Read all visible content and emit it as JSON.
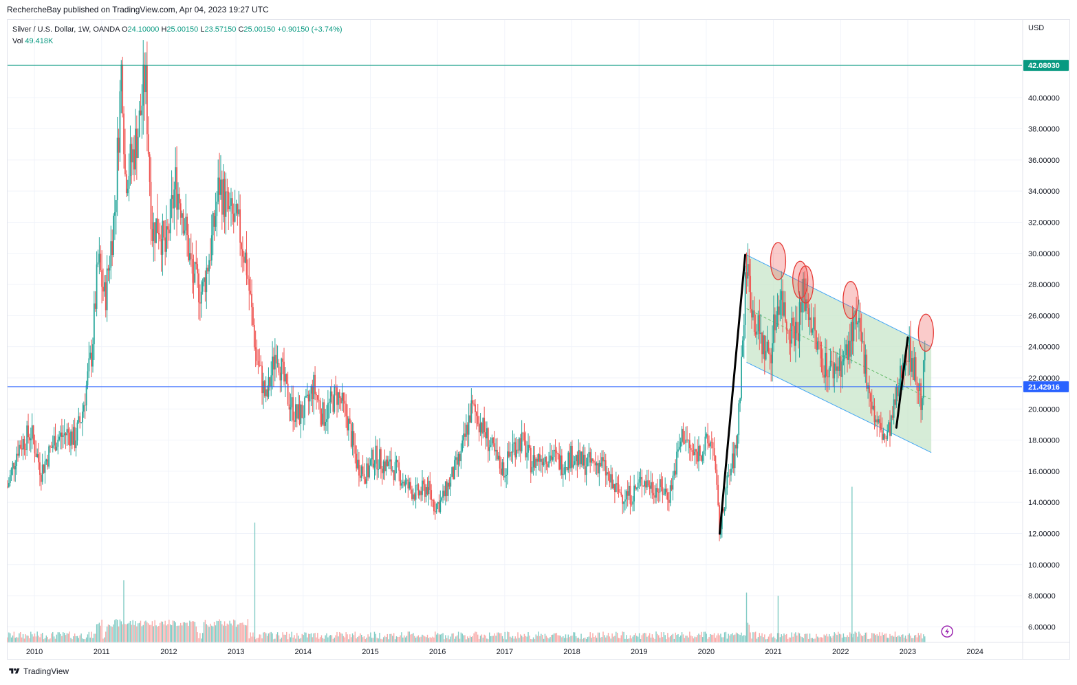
{
  "header": {
    "publisher_line": "RechercheBay published on TradingView.com, Apr 04, 2023 19:27 UTC"
  },
  "legend": {
    "symbol": "Silver / U.S. Dollar, 1W, OANDA",
    "o_label": "O",
    "o_value": "24.10000",
    "h_label": "H",
    "h_value": "25.00150",
    "l_label": "L",
    "l_value": "23.57150",
    "c_label": "C",
    "c_value": "25.00150",
    "change": "+0.90150 (+3.74%)",
    "vol_label": "Vol",
    "vol_value": "49.418K"
  },
  "footer": {
    "brand": "TradingView"
  },
  "chart_data": {
    "type": "candlestick",
    "currency_label": "USD",
    "y_ticks": [
      "6.00000",
      "8.00000",
      "10.00000",
      "12.00000",
      "14.00000",
      "16.00000",
      "18.00000",
      "20.00000",
      "22.00000",
      "24.00000",
      "26.00000",
      "28.00000",
      "30.00000",
      "32.00000",
      "34.00000",
      "36.00000",
      "38.00000",
      "40.00000"
    ],
    "x_ticks": [
      "2010",
      "2011",
      "2012",
      "2013",
      "2014",
      "2015",
      "2016",
      "2017",
      "2018",
      "2019",
      "2020",
      "2021",
      "2022",
      "2023",
      "2024"
    ],
    "ylim": [
      5,
      45
    ],
    "xlim": [
      2009.6,
      2024.7
    ],
    "horizontal_levels": [
      {
        "value": 42.0803,
        "label": "42.08030",
        "color": "#089981"
      },
      {
        "value": 21.42916,
        "label": "21.42916",
        "color": "#2962ff"
      }
    ],
    "price_path": [
      [
        2009.6,
        15.0
      ],
      [
        2009.75,
        17.5
      ],
      [
        2009.95,
        18.5
      ],
      [
        2010.1,
        16.0
      ],
      [
        2010.3,
        18.0
      ],
      [
        2010.5,
        18.5
      ],
      [
        2010.6,
        18.0
      ],
      [
        2010.7,
        19.5
      ],
      [
        2010.85,
        23.5
      ],
      [
        2010.95,
        29.5
      ],
      [
        2011.05,
        27.0
      ],
      [
        2011.2,
        33.0
      ],
      [
        2011.3,
        42.5
      ],
      [
        2011.35,
        35.0
      ],
      [
        2011.45,
        36.0
      ],
      [
        2011.55,
        38.0
      ],
      [
        2011.65,
        41.5
      ],
      [
        2011.75,
        31.5
      ],
      [
        2011.85,
        32.0
      ],
      [
        2011.95,
        30.0
      ],
      [
        2012.1,
        34.5
      ],
      [
        2012.2,
        33.0
      ],
      [
        2012.35,
        28.5
      ],
      [
        2012.5,
        27.5
      ],
      [
        2012.65,
        31.0
      ],
      [
        2012.75,
        34.5
      ],
      [
        2012.9,
        32.5
      ],
      [
        2013.05,
        31.5
      ],
      [
        2013.15,
        29.5
      ],
      [
        2013.3,
        23.5
      ],
      [
        2013.45,
        20.5
      ],
      [
        2013.6,
        24.0
      ],
      [
        2013.75,
        21.0
      ],
      [
        2013.9,
        19.5
      ],
      [
        2014.05,
        20.0
      ],
      [
        2014.15,
        21.5
      ],
      [
        2014.3,
        19.5
      ],
      [
        2014.5,
        21.0
      ],
      [
        2014.65,
        19.5
      ],
      [
        2014.8,
        16.5
      ],
      [
        2014.95,
        15.8
      ],
      [
        2015.05,
        17.0
      ],
      [
        2015.2,
        16.5
      ],
      [
        2015.4,
        16.0
      ],
      [
        2015.55,
        15.0
      ],
      [
        2015.7,
        14.5
      ],
      [
        2015.85,
        15.0
      ],
      [
        2015.95,
        13.8
      ],
      [
        2016.05,
        14.0
      ],
      [
        2016.2,
        15.5
      ],
      [
        2016.35,
        17.0
      ],
      [
        2016.5,
        20.0
      ],
      [
        2016.6,
        19.5
      ],
      [
        2016.75,
        18.0
      ],
      [
        2016.9,
        16.5
      ],
      [
        2017.0,
        16.0
      ],
      [
        2017.1,
        17.5
      ],
      [
        2017.25,
        18.0
      ],
      [
        2017.4,
        16.5
      ],
      [
        2017.55,
        17.0
      ],
      [
        2017.7,
        17.0
      ],
      [
        2017.85,
        16.5
      ],
      [
        2018.0,
        17.0
      ],
      [
        2018.15,
        16.5
      ],
      [
        2018.3,
        16.5
      ],
      [
        2018.45,
        16.5
      ],
      [
        2018.6,
        15.0
      ],
      [
        2018.75,
        14.5
      ],
      [
        2018.9,
        14.5
      ],
      [
        2019.05,
        15.5
      ],
      [
        2019.2,
        15.0
      ],
      [
        2019.35,
        14.8
      ],
      [
        2019.45,
        14.5
      ],
      [
        2019.55,
        16.5
      ],
      [
        2019.65,
        18.5
      ],
      [
        2019.8,
        17.0
      ],
      [
        2019.95,
        17.5
      ],
      [
        2020.05,
        17.8
      ],
      [
        2020.1,
        18.0
      ],
      [
        2020.2,
        12.0
      ],
      [
        2020.3,
        15.0
      ],
      [
        2020.45,
        17.5
      ],
      [
        2020.55,
        25.0
      ],
      [
        2020.6,
        29.5
      ],
      [
        2020.7,
        26.0
      ],
      [
        2020.85,
        24.0
      ],
      [
        2020.95,
        23.5
      ],
      [
        2021.05,
        26.5
      ],
      [
        2021.1,
        27.5
      ],
      [
        2021.2,
        25.5
      ],
      [
        2021.35,
        25.0
      ],
      [
        2021.45,
        27.5
      ],
      [
        2021.55,
        26.0
      ],
      [
        2021.65,
        24.0
      ],
      [
        2021.75,
        23.0
      ],
      [
        2021.85,
        22.5
      ],
      [
        2022.0,
        23.0
      ],
      [
        2022.1,
        23.5
      ],
      [
        2022.2,
        25.5
      ],
      [
        2022.3,
        24.5
      ],
      [
        2022.4,
        22.0
      ],
      [
        2022.5,
        19.5
      ],
      [
        2022.6,
        18.5
      ],
      [
        2022.68,
        18.0
      ],
      [
        2022.75,
        19.0
      ],
      [
        2022.85,
        21.0
      ],
      [
        2022.95,
        23.5
      ],
      [
        2023.0,
        24.0
      ],
      [
        2023.1,
        22.5
      ],
      [
        2023.15,
        21.5
      ],
      [
        2023.2,
        20.5
      ],
      [
        2023.25,
        23.0
      ],
      [
        2023.26,
        25.0
      ]
    ],
    "volume_spikes": [
      {
        "x": 2011.33,
        "height": 9.0
      },
      {
        "x": 2013.28,
        "height": 12.7
      },
      {
        "x": 2020.6,
        "height": 8.2
      },
      {
        "x": 2021.07,
        "height": 8.0
      },
      {
        "x": 2022.17,
        "height": 15.0
      }
    ],
    "volume_baseline": 5.2,
    "channel": {
      "upper": [
        [
          2020.6,
          29.9
        ],
        [
          2023.35,
          24.0
        ]
      ],
      "lower": [
        [
          2020.6,
          23.0
        ],
        [
          2023.35,
          17.2
        ]
      ],
      "mid": [
        [
          2020.6,
          26.45
        ],
        [
          2023.35,
          20.6
        ]
      ],
      "fill": "#c8e6c9"
    },
    "trend_lines": [
      [
        [
          2020.2,
          12.0
        ],
        [
          2020.58,
          29.9
        ]
      ],
      [
        [
          2022.83,
          18.8
        ],
        [
          2023.0,
          24.6
        ]
      ]
    ],
    "highlight_circles": [
      {
        "x": 2021.07,
        "y": 29.5
      },
      {
        "x": 2021.4,
        "y": 28.3
      },
      {
        "x": 2021.48,
        "y": 28.0
      },
      {
        "x": 2022.15,
        "y": 27.0
      },
      {
        "x": 2023.27,
        "y": 24.9
      }
    ]
  }
}
